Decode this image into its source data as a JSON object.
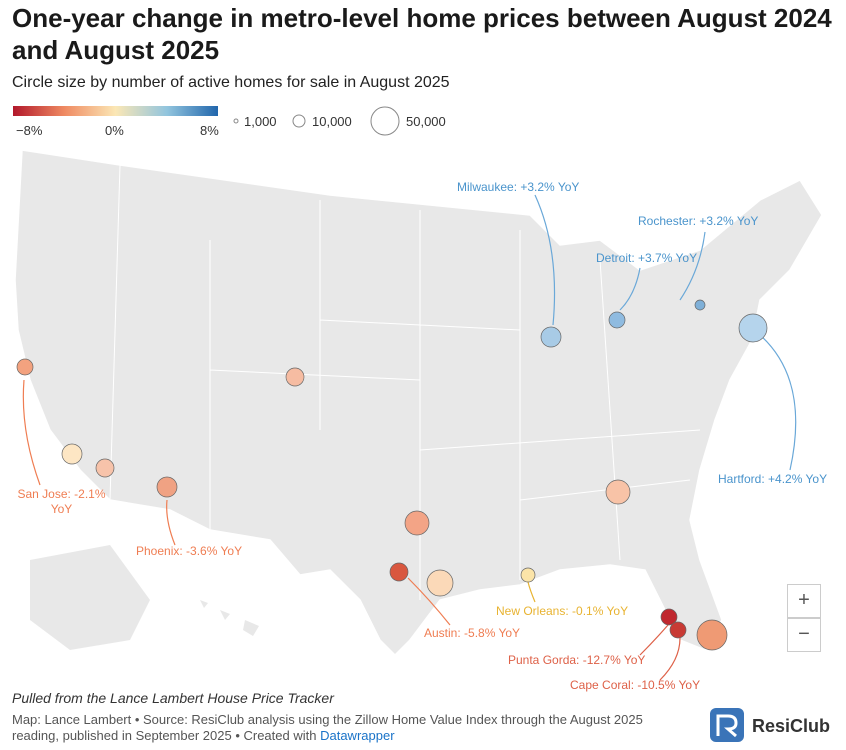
{
  "header": {
    "title": "One-year change in metro-level home prices between August 2024 and August 2025",
    "subtitle": "Circle size by number of active homes for sale in August 2025"
  },
  "legend": {
    "color_labels": [
      "−8%",
      "0%",
      "8%"
    ],
    "size_labels": [
      "1,000",
      "10,000",
      "50,000"
    ]
  },
  "annotations": [
    "Milwaukee: +3.2% YoY",
    "Rochester: +3.2% YoY",
    "Detroit: +3.7% YoY",
    "Hartford: +4.2% YoY",
    "San Jose: -2.1% YoY",
    "Phoenix: -3.6% YoY",
    "Austin: -5.8% YoY",
    "New Orleans: -0.1% YoY",
    "Punta Gorda: -12.7% YoY",
    "Cape Coral: -10.5% YoY"
  ],
  "zoom": [
    "+",
    "−"
  ],
  "footer": {
    "note": "Pulled from the Lance Lambert House Price Tracker",
    "source": "Map: Lance Lambert • Source: ResiClub analysis using the Zillow Home Value Index through the August 2025 reading, published in September 2025 • Created with",
    "link": "Datawrapper",
    "logo": "ResiClub"
  }
}
